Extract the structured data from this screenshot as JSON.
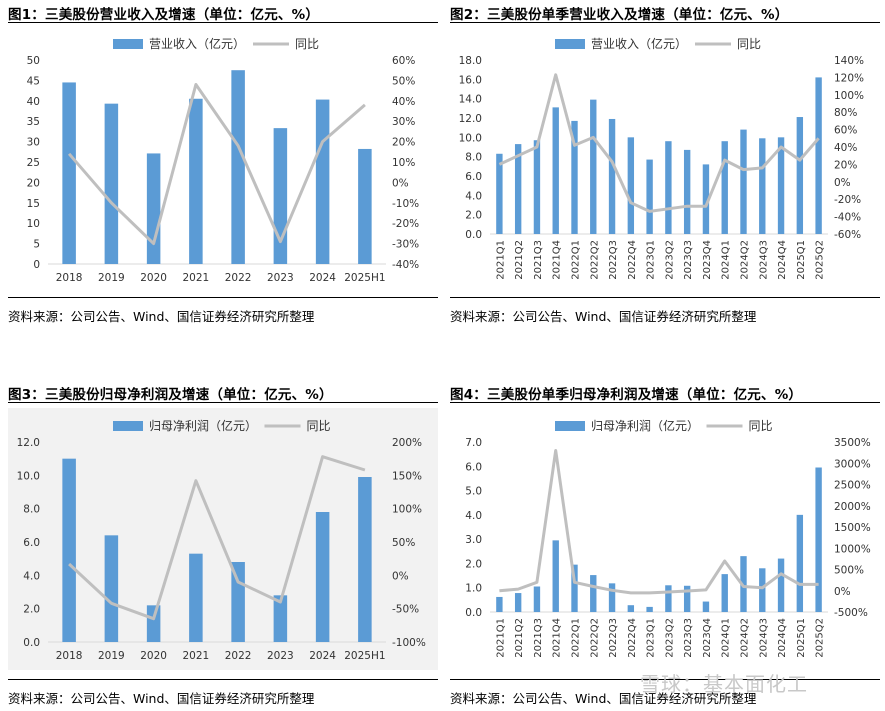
{
  "panels": [
    {
      "title": "图1：三美股份营业收入及增速（单位：亿元、%）",
      "source": "资料来源：公司公告、Wind、国信证券经济研究所整理"
    },
    {
      "title": "图2：三美股份单季营业收入及增速（单位：亿元、%）",
      "source": "资料来源：公司公告、Wind、国信证券经济研究所整理"
    },
    {
      "title": "图3：三美股份归母净利润及增速（单位：亿元、%）",
      "source": "资料来源：公司公告、Wind、国信证券经济研究所整理"
    },
    {
      "title": "图4：三美股份单季归母净利润及增速（单位：亿元、%）",
      "source": "资料来源：公司公告、Wind、国信证券经济研究所整理"
    }
  ],
  "watermark": "雪球：基本面化工",
  "colors": {
    "bar": "#5b9bd5",
    "line": "#bfbfbf",
    "axis": "#d9d9d9",
    "text": "#333333"
  },
  "chart_data": [
    {
      "type": "bar",
      "categories": [
        "2018",
        "2019",
        "2020",
        "2021",
        "2022",
        "2023",
        "2024",
        "2025H1"
      ],
      "series": [
        {
          "name": "营业收入（亿元）",
          "type": "bar",
          "axis": "left",
          "values": [
            44.5,
            39.3,
            27.1,
            40.5,
            47.5,
            33.3,
            40.3,
            28.2
          ]
        },
        {
          "name": "同比",
          "type": "line",
          "axis": "right",
          "values": [
            14,
            -10,
            -30,
            48,
            18,
            -29,
            20,
            38
          ]
        }
      ],
      "ylim_left": [
        0,
        50
      ],
      "yticks_left": [
        0,
        5,
        10,
        15,
        20,
        25,
        30,
        35,
        40,
        45,
        50
      ],
      "ytick_labels_left": [
        "0",
        "5",
        "10",
        "15",
        "20",
        "25",
        "30",
        "35",
        "40",
        "45",
        "50"
      ],
      "ylim_right": [
        -40,
        60
      ],
      "yticks_right": [
        -40,
        -30,
        -20,
        -10,
        0,
        10,
        20,
        30,
        40,
        50,
        60
      ],
      "ytick_labels_right": [
        "-40%",
        "-30%",
        "-20%",
        "-10%",
        "0%",
        "10%",
        "20%",
        "30%",
        "40%",
        "50%",
        "60%"
      ],
      "legend": "top",
      "grid": false,
      "rotate_x": false
    },
    {
      "type": "bar",
      "categories": [
        "2021Q1",
        "2021Q2",
        "2021Q3",
        "2021Q4",
        "2022Q1",
        "2022Q2",
        "2022Q3",
        "2022Q4",
        "2023Q1",
        "2023Q2",
        "2023Q3",
        "2023Q4",
        "2024Q1",
        "2024Q2",
        "2024Q3",
        "2024Q4",
        "2025Q1",
        "2025Q2"
      ],
      "series": [
        {
          "name": "营业收入（亿元）",
          "type": "bar",
          "axis": "left",
          "values": [
            8.3,
            9.3,
            9.7,
            13.1,
            11.7,
            13.9,
            11.9,
            10.0,
            7.7,
            9.6,
            8.7,
            7.2,
            9.6,
            10.8,
            9.9,
            10.0,
            12.1,
            16.2
          ]
        },
        {
          "name": "同比",
          "type": "line",
          "axis": "right",
          "values": [
            20,
            30,
            40,
            123,
            42,
            51,
            23,
            -24,
            -34,
            -31,
            -28,
            -28,
            25,
            14,
            16,
            40,
            25,
            50
          ]
        }
      ],
      "ylim_left": [
        0,
        18
      ],
      "yticks_left": [
        0,
        2,
        4,
        6,
        8,
        10,
        12,
        14,
        16,
        18
      ],
      "ytick_labels_left": [
        "0.0",
        "2.0",
        "4.0",
        "6.0",
        "8.0",
        "10.0",
        "12.0",
        "14.0",
        "16.0",
        "18.0"
      ],
      "ylim_right": [
        -60,
        140
      ],
      "yticks_right": [
        -60,
        -40,
        -20,
        0,
        20,
        40,
        60,
        80,
        100,
        120,
        140
      ],
      "ytick_labels_right": [
        "-60%",
        "-40%",
        "-20%",
        "0%",
        "20%",
        "40%",
        "60%",
        "80%",
        "100%",
        "120%",
        "140%"
      ],
      "legend": "top",
      "grid": false,
      "rotate_x": true
    },
    {
      "type": "bar",
      "categories": [
        "2018",
        "2019",
        "2020",
        "2021",
        "2022",
        "2023",
        "2024",
        "2025H1"
      ],
      "series": [
        {
          "name": "归母净利润（亿元）",
          "type": "bar",
          "axis": "left",
          "values": [
            11.0,
            6.4,
            2.2,
            5.3,
            4.8,
            2.8,
            7.8,
            9.9
          ]
        },
        {
          "name": "同比",
          "type": "line",
          "axis": "right",
          "values": [
            17,
            -42,
            -65,
            142,
            -10,
            -40,
            178,
            158
          ]
        }
      ],
      "ylim_left": [
        0,
        12
      ],
      "yticks_left": [
        0,
        2,
        4,
        6,
        8,
        10,
        12
      ],
      "ytick_labels_left": [
        "0.0",
        "2.0",
        "4.0",
        "6.0",
        "8.0",
        "10.0",
        "12.0"
      ],
      "ylim_right": [
        -100,
        200
      ],
      "yticks_right": [
        -100,
        -50,
        0,
        50,
        100,
        150,
        200
      ],
      "ytick_labels_right": [
        "-100%",
        "-50%",
        "0%",
        "50%",
        "100%",
        "150%",
        "200%"
      ],
      "legend": "top",
      "grid": false,
      "rotate_x": false
    },
    {
      "type": "bar",
      "categories": [
        "2021Q1",
        "2021Q2",
        "2021Q3",
        "2021Q4",
        "2022Q1",
        "2022Q2",
        "2022Q3",
        "2022Q4",
        "2023Q1",
        "2023Q2",
        "2023Q3",
        "2023Q4",
        "2024Q1",
        "2024Q2",
        "2024Q3",
        "2024Q4",
        "2025Q1",
        "2025Q2"
      ],
      "series": [
        {
          "name": "归母净利润（亿元）",
          "type": "bar",
          "axis": "left",
          "values": [
            0.62,
            0.78,
            1.05,
            2.95,
            1.95,
            1.52,
            1.18,
            0.28,
            0.21,
            1.1,
            1.08,
            0.43,
            1.56,
            2.3,
            1.8,
            2.2,
            4.0,
            5.95
          ]
        },
        {
          "name": "同比",
          "type": "line",
          "axis": "right",
          "values": [
            0,
            40,
            200,
            3300,
            200,
            100,
            10,
            -50,
            -50,
            -30,
            -5,
            20,
            700,
            100,
            70,
            400,
            150,
            150
          ]
        }
      ],
      "ylim_left": [
        0,
        7
      ],
      "yticks_left": [
        0,
        1,
        2,
        3,
        4,
        5,
        6,
        7
      ],
      "ytick_labels_left": [
        "0.0",
        "1.0",
        "2.0",
        "3.0",
        "4.0",
        "5.0",
        "6.0",
        "7.0"
      ],
      "ylim_right": [
        -500,
        3500
      ],
      "yticks_right": [
        -500,
        0,
        500,
        1000,
        1500,
        2000,
        2500,
        3000,
        3500
      ],
      "ytick_labels_right": [
        "-500%",
        "0%",
        "500%",
        "1000%",
        "1500%",
        "2000%",
        "2500%",
        "3000%",
        "3500%"
      ],
      "legend": "top",
      "grid": false,
      "rotate_x": true
    }
  ]
}
